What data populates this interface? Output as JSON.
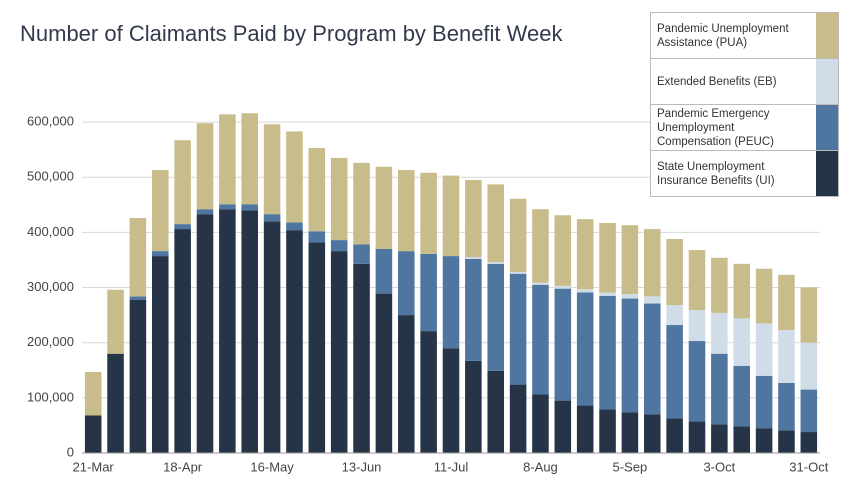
{
  "chart_data": {
    "type": "stacked_bar",
    "title": "Number of Claimants Paid by Program by Benefit Week",
    "categories": [
      "21-Mar",
      null,
      null,
      null,
      "18-Apr",
      null,
      null,
      null,
      "16-May",
      null,
      null,
      null,
      "13-Jun",
      null,
      null,
      null,
      "11-Jul",
      null,
      null,
      null,
      "8-Aug",
      null,
      null,
      null,
      "5-Sep",
      null,
      null,
      null,
      "3-Oct",
      null,
      null,
      null,
      "31-Oct"
    ],
    "series": [
      {
        "name": "State Unemployment Insurance Benefits (UI)",
        "color": "#253447",
        "values": [
          68000,
          180000,
          278000,
          357000,
          406000,
          433000,
          442000,
          440000,
          420000,
          404000,
          382000,
          366000,
          343000,
          289000,
          250000,
          221000,
          190000,
          167000,
          149000,
          124000,
          106000,
          95000,
          86000,
          79000,
          74000,
          70000,
          63000,
          57000,
          52000,
          48000,
          45000,
          41000,
          38000
        ]
      },
      {
        "name": "Pandemic Emergency Unemployment Compensation (PEUC)",
        "color": "#4e76a0",
        "values": [
          0,
          0,
          6000,
          9000,
          9000,
          9000,
          9000,
          11000,
          13000,
          14000,
          20000,
          20000,
          35000,
          81000,
          116000,
          140000,
          167000,
          185000,
          194000,
          201000,
          199000,
          203000,
          205000,
          206000,
          206000,
          201000,
          169000,
          146000,
          128000,
          110000,
          95000,
          86000,
          77000
        ]
      },
      {
        "name": "Extended Benefits (EB)",
        "color": "#d0dde8",
        "values": [
          0,
          0,
          0,
          0,
          0,
          0,
          0,
          0,
          0,
          0,
          0,
          0,
          0,
          0,
          0,
          0,
          0,
          3000,
          3000,
          3000,
          4000,
          5000,
          6000,
          6000,
          8000,
          13000,
          36000,
          56000,
          74000,
          86000,
          95000,
          96000,
          85000
        ]
      },
      {
        "name": "Pandemic Unemployment Assistance (PUA)",
        "color": "#c8bd8a",
        "values": [
          79000,
          116000,
          142000,
          147000,
          152000,
          156000,
          163000,
          165000,
          163000,
          165000,
          151000,
          149000,
          148000,
          149000,
          147000,
          147000,
          146000,
          140000,
          141000,
          133000,
          133000,
          128000,
          127000,
          126000,
          125000,
          122000,
          120000,
          109000,
          100000,
          99000,
          99000,
          100000,
          100000
        ]
      }
    ],
    "ylim": [
      0,
      640000
    ],
    "yticks": [
      0,
      {
        "value": 100000,
        "label": "100,000"
      },
      {
        "value": 200000,
        "label": "200,000"
      },
      {
        "value": 300000,
        "label": "300,000"
      },
      {
        "value": 400000,
        "label": "400,000"
      },
      {
        "value": 500000,
        "label": "500,000"
      },
      {
        "value": 600000,
        "label": "600,000"
      }
    ],
    "grid": true,
    "legend": "top-right"
  }
}
